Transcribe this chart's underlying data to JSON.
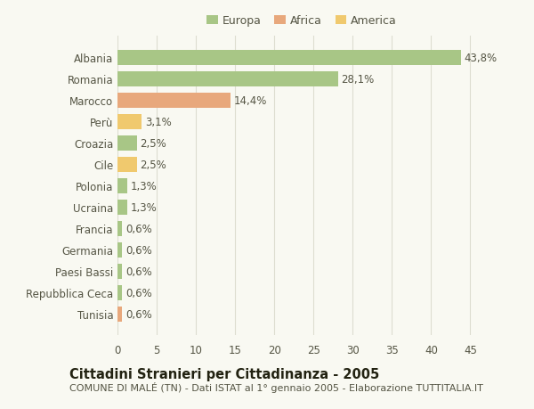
{
  "categories": [
    "Albania",
    "Romania",
    "Marocco",
    "Perù",
    "Croazia",
    "Cile",
    "Polonia",
    "Ucraina",
    "Francia",
    "Germania",
    "Paesi Bassi",
    "Repubblica Ceca",
    "Tunisia"
  ],
  "values": [
    43.8,
    28.1,
    14.4,
    3.1,
    2.5,
    2.5,
    1.3,
    1.3,
    0.6,
    0.6,
    0.6,
    0.6,
    0.6
  ],
  "labels": [
    "43,8%",
    "28,1%",
    "14,4%",
    "3,1%",
    "2,5%",
    "2,5%",
    "1,3%",
    "1,3%",
    "0,6%",
    "0,6%",
    "0,6%",
    "0,6%",
    "0,6%"
  ],
  "continents": [
    "Europa",
    "Europa",
    "Africa",
    "America",
    "Europa",
    "America",
    "Europa",
    "Europa",
    "Europa",
    "Europa",
    "Europa",
    "Europa",
    "Africa"
  ],
  "colors": {
    "Europa": "#a8c686",
    "Africa": "#e8a87c",
    "America": "#f0c96e"
  },
  "title1": "Cittadini Stranieri per Cittadinanza - 2005",
  "title2": "COMUNE DI MALÉ (TN) - Dati ISTAT al 1° gennaio 2005 - Elaborazione TUTTITALIA.IT",
  "xlim": [
    0,
    47
  ],
  "xticks": [
    0,
    5,
    10,
    15,
    20,
    25,
    30,
    35,
    40,
    45
  ],
  "background_color": "#f9f9f2",
  "grid_color": "#ddddd0",
  "bar_height": 0.72,
  "text_color": "#555544",
  "label_fontsize": 8.5,
  "tick_fontsize": 8.5,
  "title1_fontsize": 10.5,
  "title2_fontsize": 8.0
}
